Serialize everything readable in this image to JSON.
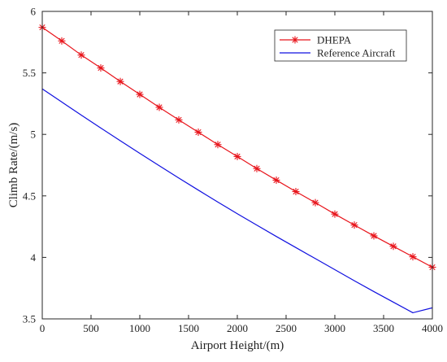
{
  "chart_data": {
    "type": "line",
    "title": "",
    "xlabel": "Airport Height/(m)",
    "ylabel": "Climb Rate/(m/s)",
    "xlim": [
      0,
      4000
    ],
    "ylim": [
      3.5,
      6
    ],
    "x_ticks": [
      0,
      500,
      1000,
      1500,
      2000,
      2500,
      3000,
      3500,
      4000
    ],
    "y_ticks": [
      3.5,
      4,
      4.5,
      5,
      5.5,
      6
    ],
    "grid": false,
    "legend_position": "top-right",
    "series": [
      {
        "name": "DHEPA",
        "color": "#e8141b",
        "marker": "asterisk",
        "x": [
          0,
          200,
          400,
          600,
          800,
          1000,
          1200,
          1400,
          1600,
          1800,
          2000,
          2200,
          2400,
          2600,
          2800,
          3000,
          3200,
          3400,
          3600,
          3800,
          4000
        ],
        "y": [
          5.87,
          5.76,
          5.645,
          5.54,
          5.43,
          5.325,
          5.22,
          5.118,
          5.018,
          4.917,
          4.82,
          4.722,
          4.628,
          4.535,
          4.445,
          4.352,
          4.263,
          4.175,
          4.09,
          4.005,
          3.92
        ]
      },
      {
        "name": "Reference Aircraft",
        "color": "#1010e0",
        "marker": "none",
        "x": [
          0,
          200,
          400,
          600,
          800,
          1000,
          1200,
          1400,
          1600,
          1800,
          2000,
          2200,
          2400,
          2600,
          2800,
          3000,
          3200,
          3400,
          3600,
          3800,
          4000
        ],
        "y": [
          5.37,
          5.263,
          5.157,
          5.052,
          4.948,
          4.846,
          4.745,
          4.645,
          4.547,
          4.45,
          4.355,
          4.262,
          4.17,
          4.08,
          3.99,
          3.9,
          3.81,
          3.722,
          3.636,
          3.55,
          3.59
        ]
      }
    ]
  }
}
